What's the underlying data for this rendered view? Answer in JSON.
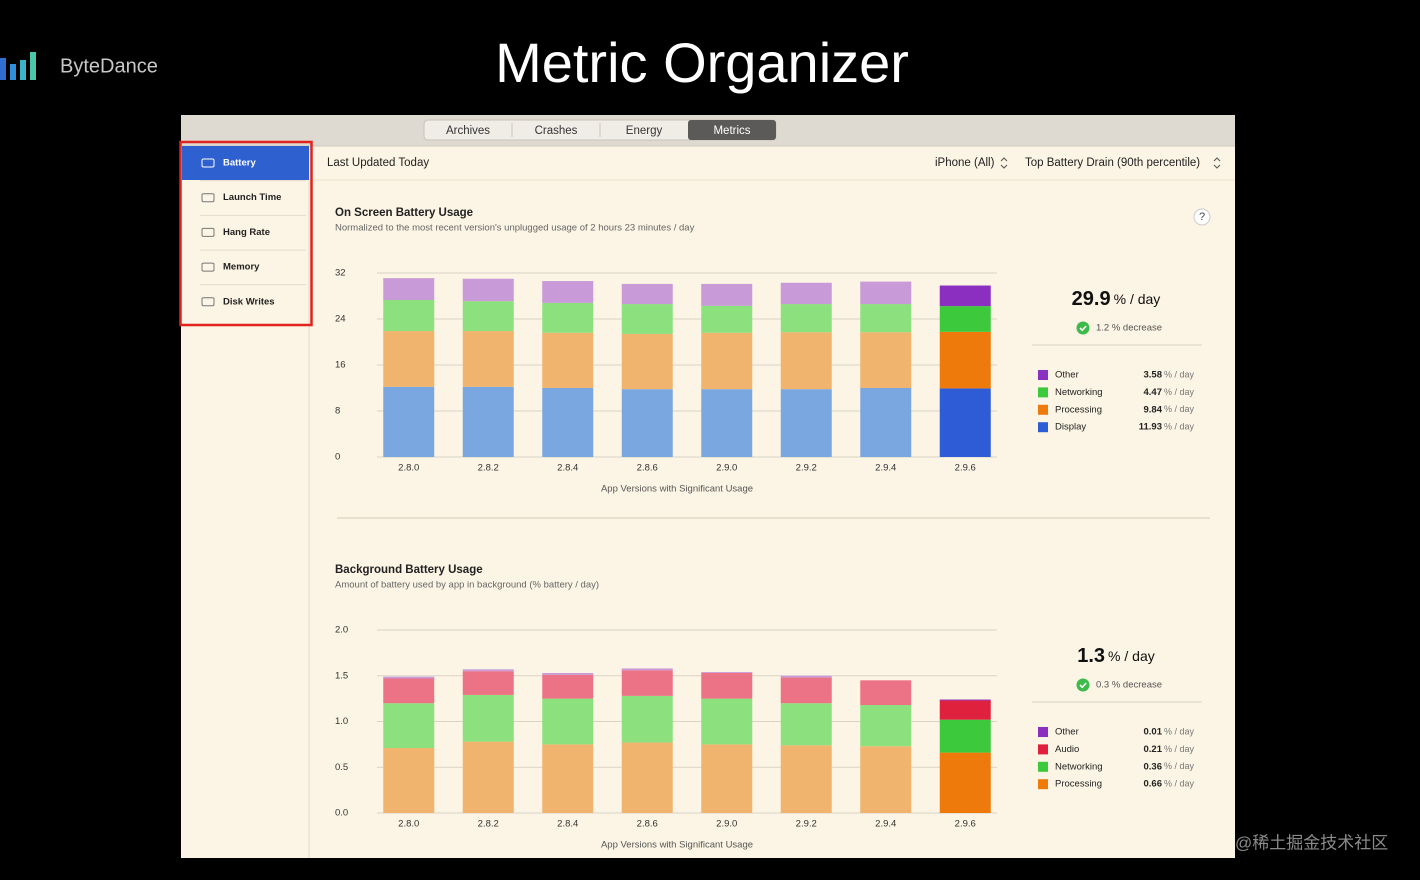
{
  "header": {
    "brand": "ByteDance",
    "title": "Metric Organizer"
  },
  "tabs": {
    "items": [
      "Archives",
      "Crashes",
      "Energy",
      "Metrics"
    ],
    "active": "Metrics"
  },
  "sidebar": {
    "items": [
      "Battery",
      "Launch Time",
      "Hang Rate",
      "Memory",
      "Disk Writes"
    ],
    "selected": "Battery"
  },
  "toolbar": {
    "status": "Last Updated Today",
    "device": "iPhone (All)",
    "metric": "Top Battery Drain (90th percentile)"
  },
  "watermark": "@稀土掘金技术社区",
  "chart_data": [
    {
      "type": "bar",
      "stacked": true,
      "title": "On Screen Battery Usage",
      "subtitle": "Normalized to the most recent version's unplugged usage of 2 hours 23 minutes / day",
      "x_label": "App Versions with Significant Usage",
      "help": "?",
      "categories": [
        "2.8.0",
        "2.8.2",
        "2.8.4",
        "2.8.6",
        "2.9.0",
        "2.9.2",
        "2.9.4",
        "2.9.6"
      ],
      "highlight_category": "2.9.6",
      "series": [
        {
          "name": "Display",
          "color": "#2e5cd6",
          "muted_color": "#7ba7e0",
          "values": [
            12.2,
            12.2,
            12.0,
            11.8,
            11.8,
            11.8,
            12.0,
            11.93
          ]
        },
        {
          "name": "Processing",
          "color": "#ee7a0b",
          "muted_color": "#f0b46e",
          "values": [
            9.7,
            9.7,
            9.6,
            9.6,
            9.8,
            9.9,
            9.7,
            9.84
          ]
        },
        {
          "name": "Networking",
          "color": "#3cc93c",
          "muted_color": "#8de07e",
          "values": [
            5.4,
            5.2,
            5.2,
            5.2,
            4.7,
            4.9,
            4.9,
            4.47
          ]
        },
        {
          "name": "Other",
          "color": "#8a2fc0",
          "muted_color": "#c89ad8",
          "values": [
            3.8,
            3.9,
            3.8,
            3.5,
            3.8,
            3.7,
            3.9,
            3.58
          ]
        }
      ],
      "ylim": [
        0,
        32
      ],
      "yticks": [
        0,
        8,
        16,
        24,
        32
      ],
      "grid": true,
      "summary_value": 29.9,
      "unit": "% / day",
      "change_note": "1.2 % decrease"
    },
    {
      "type": "bar",
      "stacked": true,
      "title": "Background Battery Usage",
      "subtitle": "Amount of battery used by app in background (% battery / day)",
      "x_label": "App Versions with Significant Usage",
      "categories": [
        "2.8.0",
        "2.8.2",
        "2.8.4",
        "2.8.6",
        "2.9.0",
        "2.9.2",
        "2.9.4",
        "2.9.6"
      ],
      "highlight_category": "2.9.6",
      "series": [
        {
          "name": "Processing",
          "color": "#ee7a0b",
          "muted_color": "#f0b46e",
          "values": [
            0.71,
            0.78,
            0.75,
            0.77,
            0.75,
            0.74,
            0.73,
            0.66
          ]
        },
        {
          "name": "Networking",
          "color": "#3cc93c",
          "muted_color": "#8de07e",
          "values": [
            0.49,
            0.51,
            0.5,
            0.51,
            0.5,
            0.46,
            0.45,
            0.36
          ]
        },
        {
          "name": "Audio",
          "color": "#e0213d",
          "muted_color": "#ec7386",
          "values": [
            0.27,
            0.26,
            0.26,
            0.28,
            0.28,
            0.28,
            0.27,
            0.21
          ]
        },
        {
          "name": "Other",
          "color": "#8a2fc0",
          "muted_color": "#c89ad8",
          "values": [
            0.02,
            0.02,
            0.02,
            0.02,
            0.01,
            0.02,
            0,
            0.01
          ]
        }
      ],
      "ylim": [
        0,
        2
      ],
      "yticks": [
        {
          "value": 0,
          "label": "0.0"
        },
        0.5,
        {
          "value": 1,
          "label": "1.0"
        },
        1.5,
        {
          "value": 2,
          "label": "2.0"
        }
      ],
      "grid": true,
      "summary_value": 1.3,
      "unit": "% / day",
      "change_note": "0.3 % decrease"
    }
  ]
}
